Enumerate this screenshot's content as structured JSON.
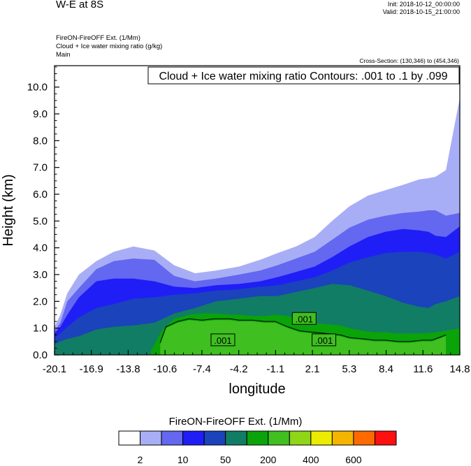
{
  "header": {
    "title": "W-E at 8S",
    "init": "Init: 2018-10-12_00:00:00",
    "valid": "Valid: 2018-10-15_21:00:00",
    "subtitles": [
      "FireON-FireOFF Ext.   (1/Mm)",
      "Cloud + Ice water mixing ratio   (g/kg)",
      "Main"
    ],
    "cross_section": "Cross-Section: (130,346) to (454,346)",
    "contour_info": "Cloud + Ice water mixing ratio Contours: .001 to .1 by .099"
  },
  "colors": {
    "levels": [
      "#ffffff",
      "#a8aef5",
      "#6467f0",
      "#1f1ef7",
      "#1b43bb",
      "#117d64",
      "#0aa30a",
      "#3fbf20",
      "#8fd518",
      "#ecec00",
      "#f5b400",
      "#ff6a00",
      "#ff1010"
    ],
    "contour_line": "#000000"
  },
  "chart_data": {
    "type": "contour",
    "xlabel": "longitude",
    "ylabel": "Height (km)",
    "xticks": [
      "-20.1",
      "-16.9",
      "-13.8",
      "-10.6",
      "-7.4",
      "-4.2",
      "-1.1",
      "2.1",
      "5.3",
      "8.4",
      "11.6",
      "14.8"
    ],
    "yticks": [
      "0.0",
      "1.0",
      "2.0",
      "3.0",
      "4.0",
      "5.0",
      "6.0",
      "7.0",
      "8.0",
      "9.0",
      "10.0"
    ],
    "xlim": [
      -20.1,
      14.8
    ],
    "ylim": [
      0,
      10.8
    ],
    "contour_labels": [
      {
        "text": ".001",
        "x": 1.4,
        "y": 1.35
      },
      {
        "text": ".001",
        "x": -5.6,
        "y": 0.55
      },
      {
        "text": ".001",
        "x": 3.1,
        "y": 0.55
      }
    ],
    "colorbar": {
      "title": "FireON-FireOFF Ext.  (1/Mm)",
      "tick_labels": [
        "2",
        "10",
        "50",
        "200",
        "400",
        "600"
      ],
      "levels": 13
    },
    "fields": [
      {
        "level": 1,
        "name": "light-blue",
        "boundary_x": [
          -20.1,
          -19.6,
          -19.0,
          -18.0,
          -16.5,
          -15.0,
          -13.3,
          -11.5,
          -9.8,
          -8.0,
          -6.2,
          -4.2,
          -2.4,
          -0.9,
          0.7,
          2.3,
          3.8,
          5.3,
          6.9,
          8.4,
          9.9,
          11.3,
          12.1,
          12.7,
          13.6,
          14.8
        ],
        "boundary_y": [
          1.05,
          1.5,
          2.3,
          3.0,
          3.5,
          3.85,
          4.05,
          3.9,
          3.35,
          3.05,
          3.15,
          3.3,
          3.55,
          3.8,
          4.05,
          4.4,
          5.0,
          5.55,
          5.95,
          6.15,
          6.35,
          6.55,
          6.6,
          6.65,
          6.9,
          9.6
        ]
      },
      {
        "level": 2,
        "name": "mid-blue",
        "boundary_x": [
          -20.1,
          -19.6,
          -19.0,
          -18.0,
          -16.5,
          -15.0,
          -13.3,
          -11.5,
          -9.8,
          -8.0,
          -6.2,
          -4.2,
          -2.4,
          -0.9,
          0.7,
          2.3,
          3.8,
          5.3,
          6.9,
          8.4,
          9.9,
          11.3,
          12.1,
          12.7,
          13.6,
          14.8
        ],
        "boundary_y": [
          0.9,
          1.2,
          2.0,
          2.5,
          3.2,
          3.5,
          3.6,
          3.55,
          2.95,
          2.75,
          2.85,
          3.0,
          3.15,
          3.35,
          3.6,
          3.85,
          4.3,
          4.75,
          5.05,
          5.2,
          5.3,
          5.35,
          5.4,
          5.4,
          5.2,
          5.3
        ]
      },
      {
        "level": 3,
        "name": "blue",
        "boundary_x": [
          -20.1,
          -19.6,
          -19.0,
          -18.0,
          -16.5,
          -15.0,
          -13.3,
          -11.5,
          -9.8,
          -8.0,
          -6.2,
          -4.2,
          -2.4,
          -0.9,
          0.7,
          2.3,
          3.8,
          5.3,
          6.9,
          8.4,
          9.9,
          11.3,
          12.1,
          12.7,
          13.6,
          14.8
        ],
        "boundary_y": [
          0.8,
          1.05,
          1.5,
          2.15,
          2.75,
          2.85,
          2.85,
          2.75,
          2.55,
          2.5,
          2.6,
          2.65,
          2.75,
          2.9,
          3.1,
          3.3,
          3.65,
          4.05,
          4.4,
          4.6,
          4.7,
          4.65,
          4.6,
          4.45,
          4.4,
          4.8
        ]
      },
      {
        "level": 4,
        "name": "dark-blue",
        "boundary_x": [
          -20.1,
          -19.6,
          -19.0,
          -18.0,
          -16.5,
          -15.0,
          -13.3,
          -11.5,
          -9.8,
          -8.0,
          -6.2,
          -4.2,
          -2.4,
          -0.9,
          0.7,
          2.3,
          3.8,
          5.3,
          6.9,
          8.4,
          9.9,
          11.3,
          12.1,
          12.7,
          13.6,
          14.8
        ],
        "boundary_y": [
          0.65,
          0.8,
          1.05,
          1.4,
          1.75,
          1.9,
          2.1,
          2.15,
          2.25,
          2.3,
          2.4,
          2.45,
          2.55,
          2.6,
          2.75,
          2.9,
          3.15,
          3.45,
          3.65,
          3.8,
          3.85,
          3.85,
          3.8,
          3.75,
          3.6,
          3.85
        ]
      },
      {
        "level": 5,
        "name": "teal",
        "boundary_x": [
          -20.1,
          -19.6,
          -19.0,
          -18.0,
          -16.5,
          -15.0,
          -13.3,
          -11.5,
          -9.8,
          -8.0,
          -6.2,
          -4.2,
          -2.4,
          -0.9,
          0.7,
          2.3,
          3.8,
          5.3,
          6.9,
          8.4,
          9.9,
          11.3,
          12.1,
          12.7,
          13.6,
          14.8
        ],
        "boundary_y": [
          0.4,
          0.5,
          0.6,
          0.7,
          0.95,
          1.05,
          1.1,
          1.2,
          1.55,
          1.75,
          2.0,
          2.1,
          2.2,
          2.2,
          2.35,
          2.5,
          2.65,
          2.6,
          2.4,
          2.2,
          1.95,
          1.8,
          1.75,
          1.9,
          2.0,
          2.2
        ]
      },
      {
        "level": 6,
        "name": "green",
        "boundary_x": [
          -11.8,
          -10.8,
          -9.8,
          -8.5,
          -7.4,
          -6.2,
          -5.0,
          -4.2,
          -3.0,
          -2.0,
          -1.1,
          0.0,
          1.0,
          2.1,
          3.3,
          4.5,
          5.3,
          6.5,
          7.5,
          8.4,
          9.5,
          10.5,
          11.6,
          12.8,
          13.6,
          14.8
        ],
        "boundary_y": [
          0.15,
          0.95,
          1.35,
          1.5,
          1.55,
          1.55,
          1.5,
          1.5,
          1.45,
          1.45,
          1.5,
          1.45,
          1.3,
          1.2,
          1.15,
          1.1,
          1.0,
          0.9,
          0.85,
          0.85,
          0.8,
          0.8,
          0.8,
          0.85,
          0.9,
          1.0
        ]
      },
      {
        "level": 7,
        "name": "bright-green",
        "boundary_x": [
          -11.0,
          -10.5,
          -9.5,
          -8.5,
          -7.4,
          -6.3,
          -5.0,
          -4.2,
          -3.0,
          -2.0,
          -1.1,
          0.0,
          1.0,
          2.1,
          3.3,
          4.5,
          5.3,
          6.5,
          7.5,
          8.4,
          9.5,
          10.5,
          11.6,
          12.4,
          13.0,
          13.6
        ],
        "boundary_y": [
          0.4,
          1.0,
          1.2,
          1.3,
          1.25,
          1.3,
          1.3,
          1.25,
          1.25,
          1.2,
          1.2,
          1.0,
          0.85,
          0.8,
          0.75,
          0.7,
          0.6,
          0.55,
          0.5,
          0.5,
          0.45,
          0.45,
          0.5,
          0.5,
          0.6,
          0.7
        ]
      }
    ]
  }
}
